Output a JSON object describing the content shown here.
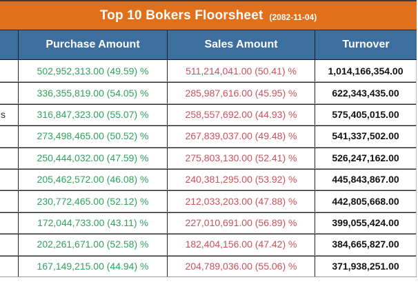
{
  "header": {
    "title": "Top 10 Bokers Floorsheet",
    "date": "(2082-11-04)"
  },
  "columns": {
    "broker": "",
    "purchase": "Purchase Amount",
    "sales": "Sales Amount",
    "turnover": "Turnover"
  },
  "colors": {
    "title_bar_orange": "#E0701B",
    "header_blue": "#3C6E9E",
    "purchase_green": "#2EA25E",
    "sales_red": "#CD4F5E",
    "turnover_text": "#121212"
  },
  "chart_data": {
    "type": "table",
    "title": "Top 10 Bokers Floorsheet",
    "date": "2082-11-04",
    "columns": [
      "",
      "Purchase Amount",
      "Sales Amount",
      "Turnover"
    ],
    "rows": [
      {
        "broker": "",
        "purchase": "502,952,313.00 (49.59) %",
        "sales": "511,214,041.00 (50.41) %",
        "turnover": "1,014,166,354.00"
      },
      {
        "broker": "",
        "purchase": "336,355,819.00 (54.05) %",
        "sales": "285,987,616.00 (45.95) %",
        "turnover": "622,343,435.00"
      },
      {
        "broker": "s",
        "purchase": "316,847,323.00 (55.07) %",
        "sales": "258,557,692.00 (44.93) %",
        "turnover": "575,405,015.00"
      },
      {
        "broker": "",
        "purchase": "273,498,465.00 (50.52) %",
        "sales": "267,839,037.00 (49.48) %",
        "turnover": "541,337,502.00"
      },
      {
        "broker": "",
        "purchase": "250,444,032.00 (47.59) %",
        "sales": "275,803,130.00 (52.41) %",
        "turnover": "526,247,162.00"
      },
      {
        "broker": "",
        "purchase": "205,462,572.00 (46.08) %",
        "sales": "240,381,295.00 (53.92) %",
        "turnover": "445,843,867.00"
      },
      {
        "broker": "",
        "purchase": "230,772,465.00 (52.12) %",
        "sales": "212,033,203.00 (47.88) %",
        "turnover": "442,805,668.00"
      },
      {
        "broker": "",
        "purchase": "172,044,733.00 (43.11) %",
        "sales": "227,010,691.00 (56.89) %",
        "turnover": "399,055,424.00"
      },
      {
        "broker": "",
        "purchase": "202,261,671.00 (52.58) %",
        "sales": "182,404,156.00 (47.42) %",
        "turnover": "384,665,827.00"
      },
      {
        "broker": "",
        "purchase": "167,149,215.00 (44.94) %",
        "sales": "204,789,036.00 (55.06) %",
        "turnover": "371,938,251.00"
      }
    ]
  }
}
